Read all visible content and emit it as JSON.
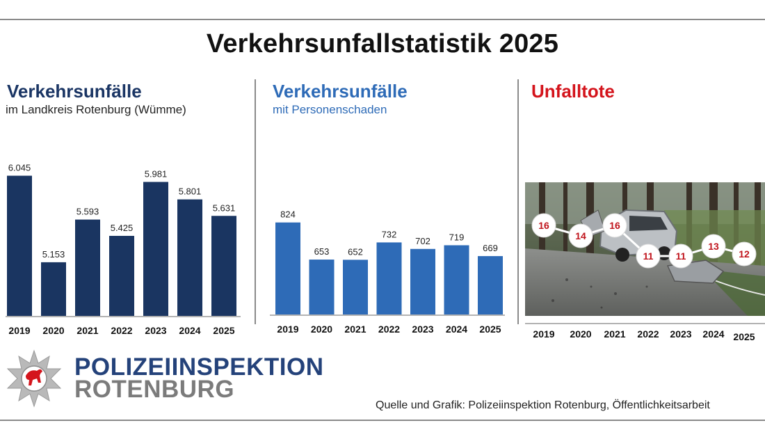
{
  "title": "Verkehrsunfallstatistik 2025",
  "colors": {
    "panel1_title": "#1a3564",
    "panel1_bar": "#1a3561",
    "panel2_title": "#2e6bb7",
    "panel2_bar": "#2e6bb7",
    "panel3_title": "#d4141c",
    "marker_text": "#c0141c"
  },
  "panels": [
    {
      "title": "Verkehrsunfälle",
      "subtitle": "im Landkreis Rotenburg (Wümme)"
    },
    {
      "title": "Verkehrsunfälle",
      "subtitle": "mit Personenschaden"
    },
    {
      "title": "Unfalltote",
      "subtitle": ""
    }
  ],
  "chart_data": [
    {
      "type": "bar",
      "title": "Verkehrsunfälle",
      "subtitle": "im Landkreis Rotenburg (Wümme)",
      "categories": [
        "2019",
        "2020",
        "2021",
        "2022",
        "2023",
        "2024",
        "2025"
      ],
      "values": [
        6045,
        5153,
        5593,
        5425,
        5981,
        5801,
        5631
      ],
      "value_labels": [
        "6.045",
        "5.153",
        "5.593",
        "5.425",
        "5.981",
        "5.801",
        "5.631"
      ],
      "ylim": [
        4600,
        6300
      ],
      "grid": false,
      "legend": "none"
    },
    {
      "type": "bar",
      "title": "Verkehrsunfälle",
      "subtitle": "mit Personenschaden",
      "categories": [
        "2019",
        "2020",
        "2021",
        "2022",
        "2023",
        "2024",
        "2025"
      ],
      "values": [
        824,
        653,
        652,
        732,
        702,
        719,
        669
      ],
      "value_labels": [
        "824",
        "653",
        "652",
        "732",
        "702",
        "719",
        "669"
      ],
      "ylim": [
        400,
        900
      ],
      "grid": false,
      "legend": "none"
    },
    {
      "type": "line",
      "title": "Unfalltote",
      "categories": [
        "2019",
        "2020",
        "2021",
        "2022",
        "2023",
        "2024",
        "2025"
      ],
      "values": [
        16,
        14,
        16,
        11,
        11,
        13,
        12
      ],
      "value_labels": [
        "16",
        "14",
        "16",
        "11",
        "11",
        "13",
        "12"
      ],
      "background": "photo of crashed car on a forest road",
      "grid": false,
      "legend": "none"
    }
  ],
  "logo": {
    "line1": "POLIZEIINSPEKTION",
    "line2": "ROTENBURG",
    "emblem_icon": "police-star-horse-icon"
  },
  "source": "Quelle und Grafik: Polizeiinspektion Rotenburg, Öffentlichkeitsarbeit"
}
